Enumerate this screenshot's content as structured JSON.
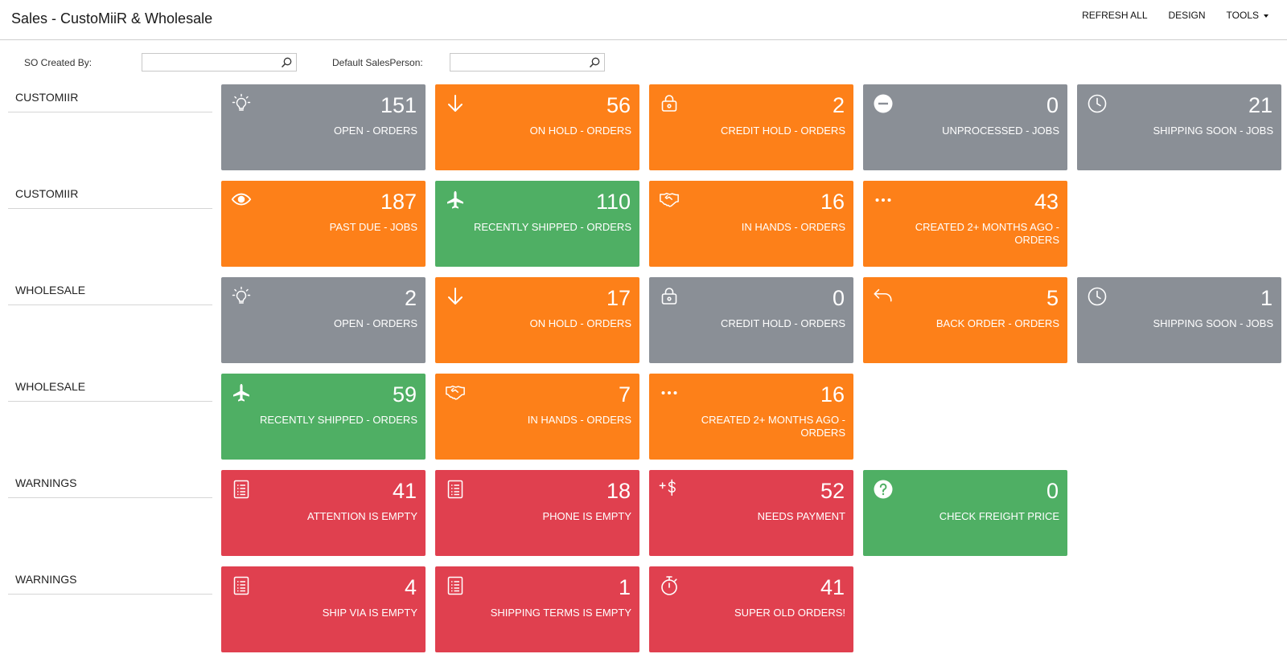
{
  "header": {
    "title": "Sales - CustoMiiR & Wholesale",
    "actions": {
      "refresh_all": "REFRESH ALL",
      "design": "DESIGN",
      "tools": "TOOLS"
    }
  },
  "filters": {
    "so_created_by": {
      "label": "SO Created By:",
      "value": "",
      "placeholder": ""
    },
    "default_salesperson": {
      "label": "Default SalesPerson:",
      "value": "",
      "placeholder": ""
    }
  },
  "colors": {
    "gray": "#8a8f96",
    "orange": "#fd8019",
    "green": "#4faf64",
    "red": "#e0404f"
  },
  "groups": [
    {
      "label": "CUSTOMIIR",
      "tiles": [
        {
          "count": "151",
          "label": "OPEN - ORDERS",
          "color": "gray",
          "icon": "lightbulb-icon"
        },
        {
          "count": "56",
          "label": "ON HOLD - ORDERS",
          "color": "orange",
          "icon": "arrow-down-icon"
        },
        {
          "count": "2",
          "label": "CREDIT HOLD - ORDERS",
          "color": "orange",
          "icon": "lock-icon"
        },
        {
          "count": "0",
          "label": "UNPROCESSED - JOBS",
          "color": "gray",
          "icon": "minus-circle-icon"
        },
        {
          "count": "21",
          "label": "SHIPPING SOON - JOBS",
          "color": "gray",
          "icon": "clock-icon"
        }
      ]
    },
    {
      "label": "CUSTOMIIR",
      "tiles": [
        {
          "count": "187",
          "label": "PAST DUE - JOBS",
          "color": "orange",
          "icon": "eye-icon"
        },
        {
          "count": "110",
          "label": "RECENTLY SHIPPED - ORDERS",
          "color": "green",
          "icon": "airplane-icon"
        },
        {
          "count": "16",
          "label": "IN HANDS - ORDERS",
          "color": "orange",
          "icon": "handshake-icon"
        },
        {
          "count": "43",
          "label": "CREATED 2+ MONTHS AGO - ORDERS",
          "color": "orange",
          "icon": "ellipsis-icon"
        }
      ]
    },
    {
      "label": "WHOLESALE",
      "tiles": [
        {
          "count": "2",
          "label": "OPEN - ORDERS",
          "color": "gray",
          "icon": "lightbulb-icon"
        },
        {
          "count": "17",
          "label": "ON HOLD - ORDERS",
          "color": "orange",
          "icon": "arrow-down-icon"
        },
        {
          "count": "0",
          "label": "CREDIT HOLD - ORDERS",
          "color": "gray",
          "icon": "lock-icon"
        },
        {
          "count": "5",
          "label": "BACK ORDER - ORDERS",
          "color": "orange",
          "icon": "reply-icon"
        },
        {
          "count": "1",
          "label": "SHIPPING SOON - JOBS",
          "color": "gray",
          "icon": "clock-icon"
        }
      ]
    },
    {
      "label": "WHOLESALE",
      "tiles": [
        {
          "count": "59",
          "label": "RECENTLY SHIPPED - ORDERS",
          "color": "green",
          "icon": "airplane-icon"
        },
        {
          "count": "7",
          "label": "IN HANDS - ORDERS",
          "color": "orange",
          "icon": "handshake-icon"
        },
        {
          "count": "16",
          "label": "CREATED 2+ MONTHS AGO - ORDERS",
          "color": "orange",
          "icon": "ellipsis-icon"
        }
      ]
    },
    {
      "label": "WARNINGS",
      "tiles": [
        {
          "count": "41",
          "label": "ATTENTION IS EMPTY",
          "color": "red",
          "icon": "document-icon"
        },
        {
          "count": "18",
          "label": "PHONE IS EMPTY",
          "color": "red",
          "icon": "document-icon"
        },
        {
          "count": "52",
          "label": "NEEDS PAYMENT",
          "color": "red",
          "icon": "plus-dollar-icon"
        },
        {
          "count": "0",
          "label": "CHECK FREIGHT PRICE",
          "color": "green",
          "icon": "question-circle-icon"
        }
      ]
    },
    {
      "label": "WARNINGS",
      "tiles": [
        {
          "count": "4",
          "label": "SHIP VIA IS EMPTY",
          "color": "red",
          "icon": "document-icon"
        },
        {
          "count": "1",
          "label": "SHIPPING TERMS IS EMPTY",
          "color": "red",
          "icon": "document-icon"
        },
        {
          "count": "41",
          "label": "SUPER OLD ORDERS!",
          "color": "red",
          "icon": "stopwatch-icon"
        }
      ]
    }
  ]
}
